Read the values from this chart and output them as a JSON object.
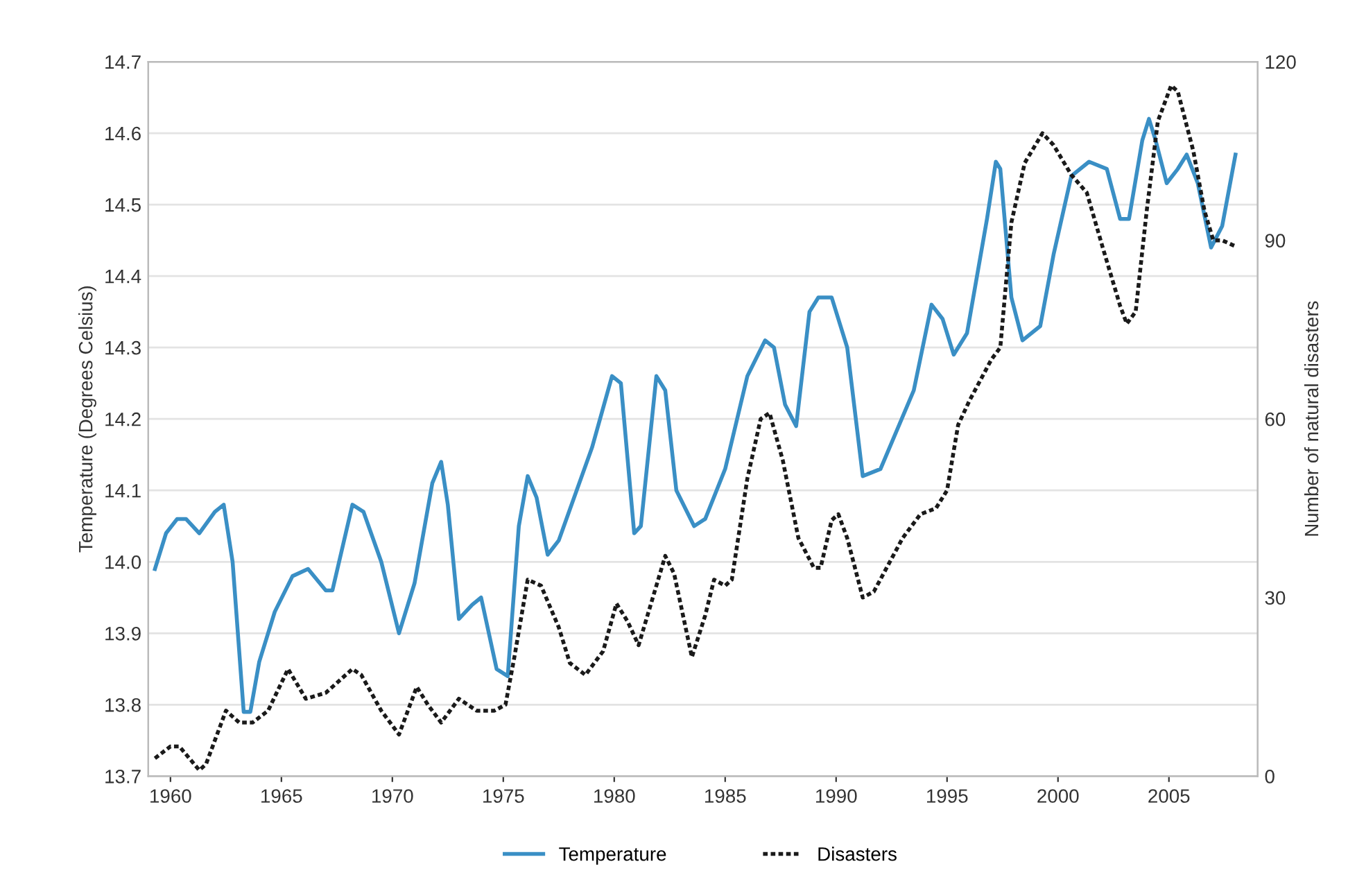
{
  "chart_data": {
    "type": "line",
    "xlabel": null,
    "ylabel": "Temperature (Degrees Celsius)",
    "y2label": "Number of natural disasters",
    "xlim": [
      1959,
      2009
    ],
    "xticks": [
      1960,
      1965,
      1970,
      1975,
      1980,
      1985,
      1990,
      1995,
      2000,
      2005
    ],
    "ylim": [
      13.7,
      14.7
    ],
    "yticks": [
      {
        "value": 13.7,
        "label": "13.7"
      },
      {
        "value": 13.8,
        "label": "13.8"
      },
      {
        "value": 13.9,
        "label": "13.9"
      },
      {
        "value": 14.0,
        "label": "14.0"
      },
      {
        "value": 14.1,
        "label": "14.1"
      },
      {
        "value": 14.2,
        "label": "14.2"
      },
      {
        "value": 14.3,
        "label": "14.3"
      },
      {
        "value": 14.4,
        "label": "14.4"
      },
      {
        "value": 14.5,
        "label": "14.5"
      },
      {
        "value": 14.6,
        "label": "14.6"
      },
      {
        "value": 14.7,
        "label": "14.7"
      }
    ],
    "y2lim": [
      0,
      120
    ],
    "y2ticks": [
      0,
      30,
      60,
      90,
      120
    ],
    "grid": "y",
    "legend": "bottom",
    "marker": "none",
    "series": [
      {
        "name": "Temperature",
        "color": "#3a8fc5",
        "line_style": "solid",
        "x": [
          1959.3,
          1959.8,
          1960.3,
          1960.7,
          1961.3,
          1962.0,
          1962.4,
          1962.8,
          1963.3,
          1963.6,
          1964.0,
          1964.7,
          1965.5,
          1966.2,
          1967.0,
          1967.3,
          1968.2,
          1968.7,
          1969.5,
          1970.3,
          1971.0,
          1971.8,
          1972.2,
          1972.5,
          1973.0,
          1973.6,
          1974.0,
          1974.7,
          1975.2,
          1975.7,
          1976.1,
          1976.5,
          1977.0,
          1977.5,
          1979.0,
          1979.9,
          1980.3,
          1980.9,
          1981.2,
          1981.9,
          1982.3,
          1982.8,
          1983.6,
          1984.1,
          1985.0,
          1986.0,
          1986.8,
          1987.2,
          1987.7,
          1988.2,
          1988.8,
          1989.2,
          1989.8,
          1990.5,
          1991.2,
          1992.0,
          1993.5,
          1994.3,
          1994.8,
          1995.3,
          1995.9,
          1996.8,
          1997.2,
          1997.4,
          1997.9,
          1998.4,
          1999.2,
          1999.8,
          2000.6,
          2001.4,
          2002.2,
          2002.8,
          2003.2,
          2003.8,
          2004.1,
          2004.4,
          2004.9,
          2005.4,
          2005.8,
          2006.3,
          2006.9,
          2007.4,
          2008.0
        ],
        "values": [
          13.99,
          14.04,
          14.06,
          14.06,
          14.04,
          14.07,
          14.08,
          14.0,
          13.79,
          13.79,
          13.86,
          13.93,
          13.98,
          13.99,
          13.96,
          13.96,
          14.08,
          14.07,
          14.0,
          13.9,
          13.97,
          14.11,
          14.14,
          14.08,
          13.92,
          13.94,
          13.95,
          13.85,
          13.84,
          14.05,
          14.12,
          14.09,
          14.01,
          14.03,
          14.16,
          14.26,
          14.25,
          14.04,
          14.05,
          14.26,
          14.24,
          14.1,
          14.05,
          14.06,
          14.13,
          14.26,
          14.31,
          14.3,
          14.22,
          14.19,
          14.35,
          14.37,
          14.37,
          14.3,
          14.12,
          14.13,
          14.24,
          14.36,
          14.34,
          14.29,
          14.32,
          14.48,
          14.56,
          14.55,
          14.37,
          14.31,
          14.33,
          14.43,
          14.54,
          14.56,
          14.55,
          14.48,
          14.48,
          14.59,
          14.62,
          14.59,
          14.53,
          14.55,
          14.57,
          14.53,
          14.44,
          14.47,
          14.57
        ]
      },
      {
        "name": "Disasters",
        "color": "#1a1a1a",
        "line_style": "dotted",
        "axis": "y2",
        "x": [
          1959.3,
          1960.0,
          1960.4,
          1961.3,
          1961.6,
          1962.5,
          1963.1,
          1963.7,
          1964.4,
          1965.3,
          1966.1,
          1967.0,
          1968.2,
          1968.6,
          1969.5,
          1970.3,
          1971.1,
          1971.6,
          1972.2,
          1973.0,
          1973.8,
          1974.6,
          1975.1,
          1975.5,
          1976.1,
          1976.7,
          1977.5,
          1978.0,
          1978.7,
          1979.5,
          1980.1,
          1980.6,
          1981.1,
          1981.5,
          1982.3,
          1982.7,
          1983.5,
          1984.1,
          1984.5,
          1985.0,
          1985.3,
          1986.0,
          1986.6,
          1987.0,
          1987.6,
          1988.3,
          1989.0,
          1989.3,
          1989.8,
          1990.1,
          1990.5,
          1991.2,
          1991.7,
          1993.0,
          1993.8,
          1994.5,
          1995.0,
          1995.5,
          1996.0,
          1997.0,
          1997.4,
          1997.9,
          1998.5,
          1999.3,
          1999.8,
          2000.6,
          2001.3,
          2002.0,
          2002.8,
          2003.1,
          2003.5,
          2004.0,
          2004.5,
          2005.1,
          2005.4,
          2006.1,
          2006.6,
          2007.0,
          2007.4,
          2008.0
        ],
        "values": [
          3,
          5,
          5,
          1,
          2,
          11,
          9,
          9,
          11,
          18,
          13,
          14,
          18,
          17,
          11,
          7,
          15,
          12,
          9,
          13,
          11,
          11,
          12,
          20,
          33,
          32,
          25,
          19,
          17,
          21,
          29,
          26,
          22,
          27,
          37,
          34,
          20,
          27,
          33,
          32,
          33,
          50,
          60,
          61,
          53,
          40,
          35,
          35,
          43,
          44,
          40,
          30,
          31,
          40,
          44,
          45,
          48,
          59,
          63,
          70,
          72,
          93,
          103,
          108,
          106,
          101,
          98,
          89,
          79,
          76,
          78,
          95,
          110,
          116,
          115,
          105,
          95,
          90,
          90,
          89
        ]
      }
    ]
  }
}
